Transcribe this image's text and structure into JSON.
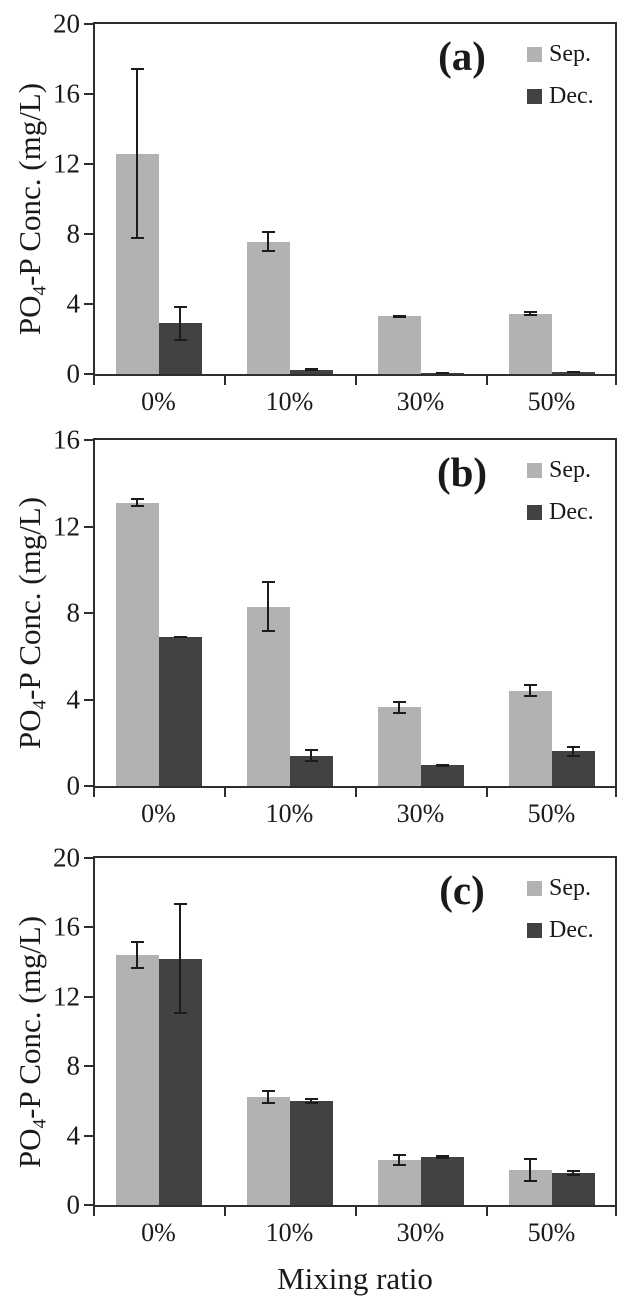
{
  "figure": {
    "x_axis_title": "Mixing ratio",
    "y_axis_title": "PO4-P Conc. (mg/L)",
    "y_axis_title_parts": {
      "pre": "PO",
      "sub": "4",
      "post": "-P Conc. (mg/L)"
    }
  },
  "colors": {
    "sep_bar": "#b2b2b2",
    "dec_bar": "#424242",
    "axis": "#2e2e2e",
    "error_bar": "#1c1c1c",
    "background": "#ffffff"
  },
  "chart_data": [
    {
      "type": "bar",
      "panel_label": "(a)",
      "title": "",
      "xlabel": "",
      "ylabel": "PO4-P Conc. (mg/L)",
      "categories": [
        "0%",
        "10%",
        "30%",
        "50%"
      ],
      "series": [
        {
          "name": "Sep.",
          "color": "#b2b2b2",
          "values": [
            12.6,
            7.55,
            3.3,
            3.45
          ],
          "errors": [
            4.9,
            0.6,
            0.1,
            0.15
          ]
        },
        {
          "name": "Dec.",
          "color": "#424242",
          "values": [
            2.9,
            0.25,
            0.08,
            0.12
          ],
          "errors": [
            1.0,
            0.1,
            0.03,
            0.05
          ]
        }
      ],
      "ylim": [
        0,
        20
      ],
      "yticks": [
        0,
        4,
        8,
        12,
        16,
        20
      ],
      "grid": false,
      "error_bars": true,
      "legend_position": "top-right"
    },
    {
      "type": "bar",
      "panel_label": "(b)",
      "title": "",
      "xlabel": "",
      "ylabel": "PO4-P Conc. (mg/L)",
      "categories": [
        "0%",
        "10%",
        "30%",
        "50%"
      ],
      "series": [
        {
          "name": "Sep.",
          "color": "#b2b2b2",
          "values": [
            13.1,
            8.3,
            3.65,
            4.4
          ],
          "errors": [
            0.2,
            1.2,
            0.3,
            0.3
          ]
        },
        {
          "name": "Dec.",
          "color": "#424242",
          "values": [
            6.9,
            1.4,
            0.95,
            1.6
          ],
          "errors": [
            0.05,
            0.3,
            0.06,
            0.25
          ]
        }
      ],
      "ylim": [
        0,
        16
      ],
      "yticks": [
        0,
        4,
        8,
        12,
        16
      ],
      "grid": false,
      "error_bars": true,
      "legend_position": "top-right"
    },
    {
      "type": "bar",
      "panel_label": "(c)",
      "title": "",
      "xlabel": "Mixing ratio",
      "ylabel": "PO4-P Conc. (mg/L)",
      "categories": [
        "0%",
        "10%",
        "30%",
        "50%"
      ],
      "series": [
        {
          "name": "Sep.",
          "color": "#b2b2b2",
          "values": [
            14.4,
            6.2,
            2.6,
            2.0
          ],
          "errors": [
            0.8,
            0.4,
            0.35,
            0.7
          ]
        },
        {
          "name": "Dec.",
          "color": "#424242",
          "values": [
            14.2,
            6.0,
            2.75,
            1.85
          ],
          "errors": [
            3.2,
            0.15,
            0.12,
            0.15
          ]
        }
      ],
      "ylim": [
        0,
        20
      ],
      "yticks": [
        0,
        4,
        8,
        12,
        16,
        20
      ],
      "grid": false,
      "error_bars": true,
      "legend_position": "top-right"
    }
  ]
}
